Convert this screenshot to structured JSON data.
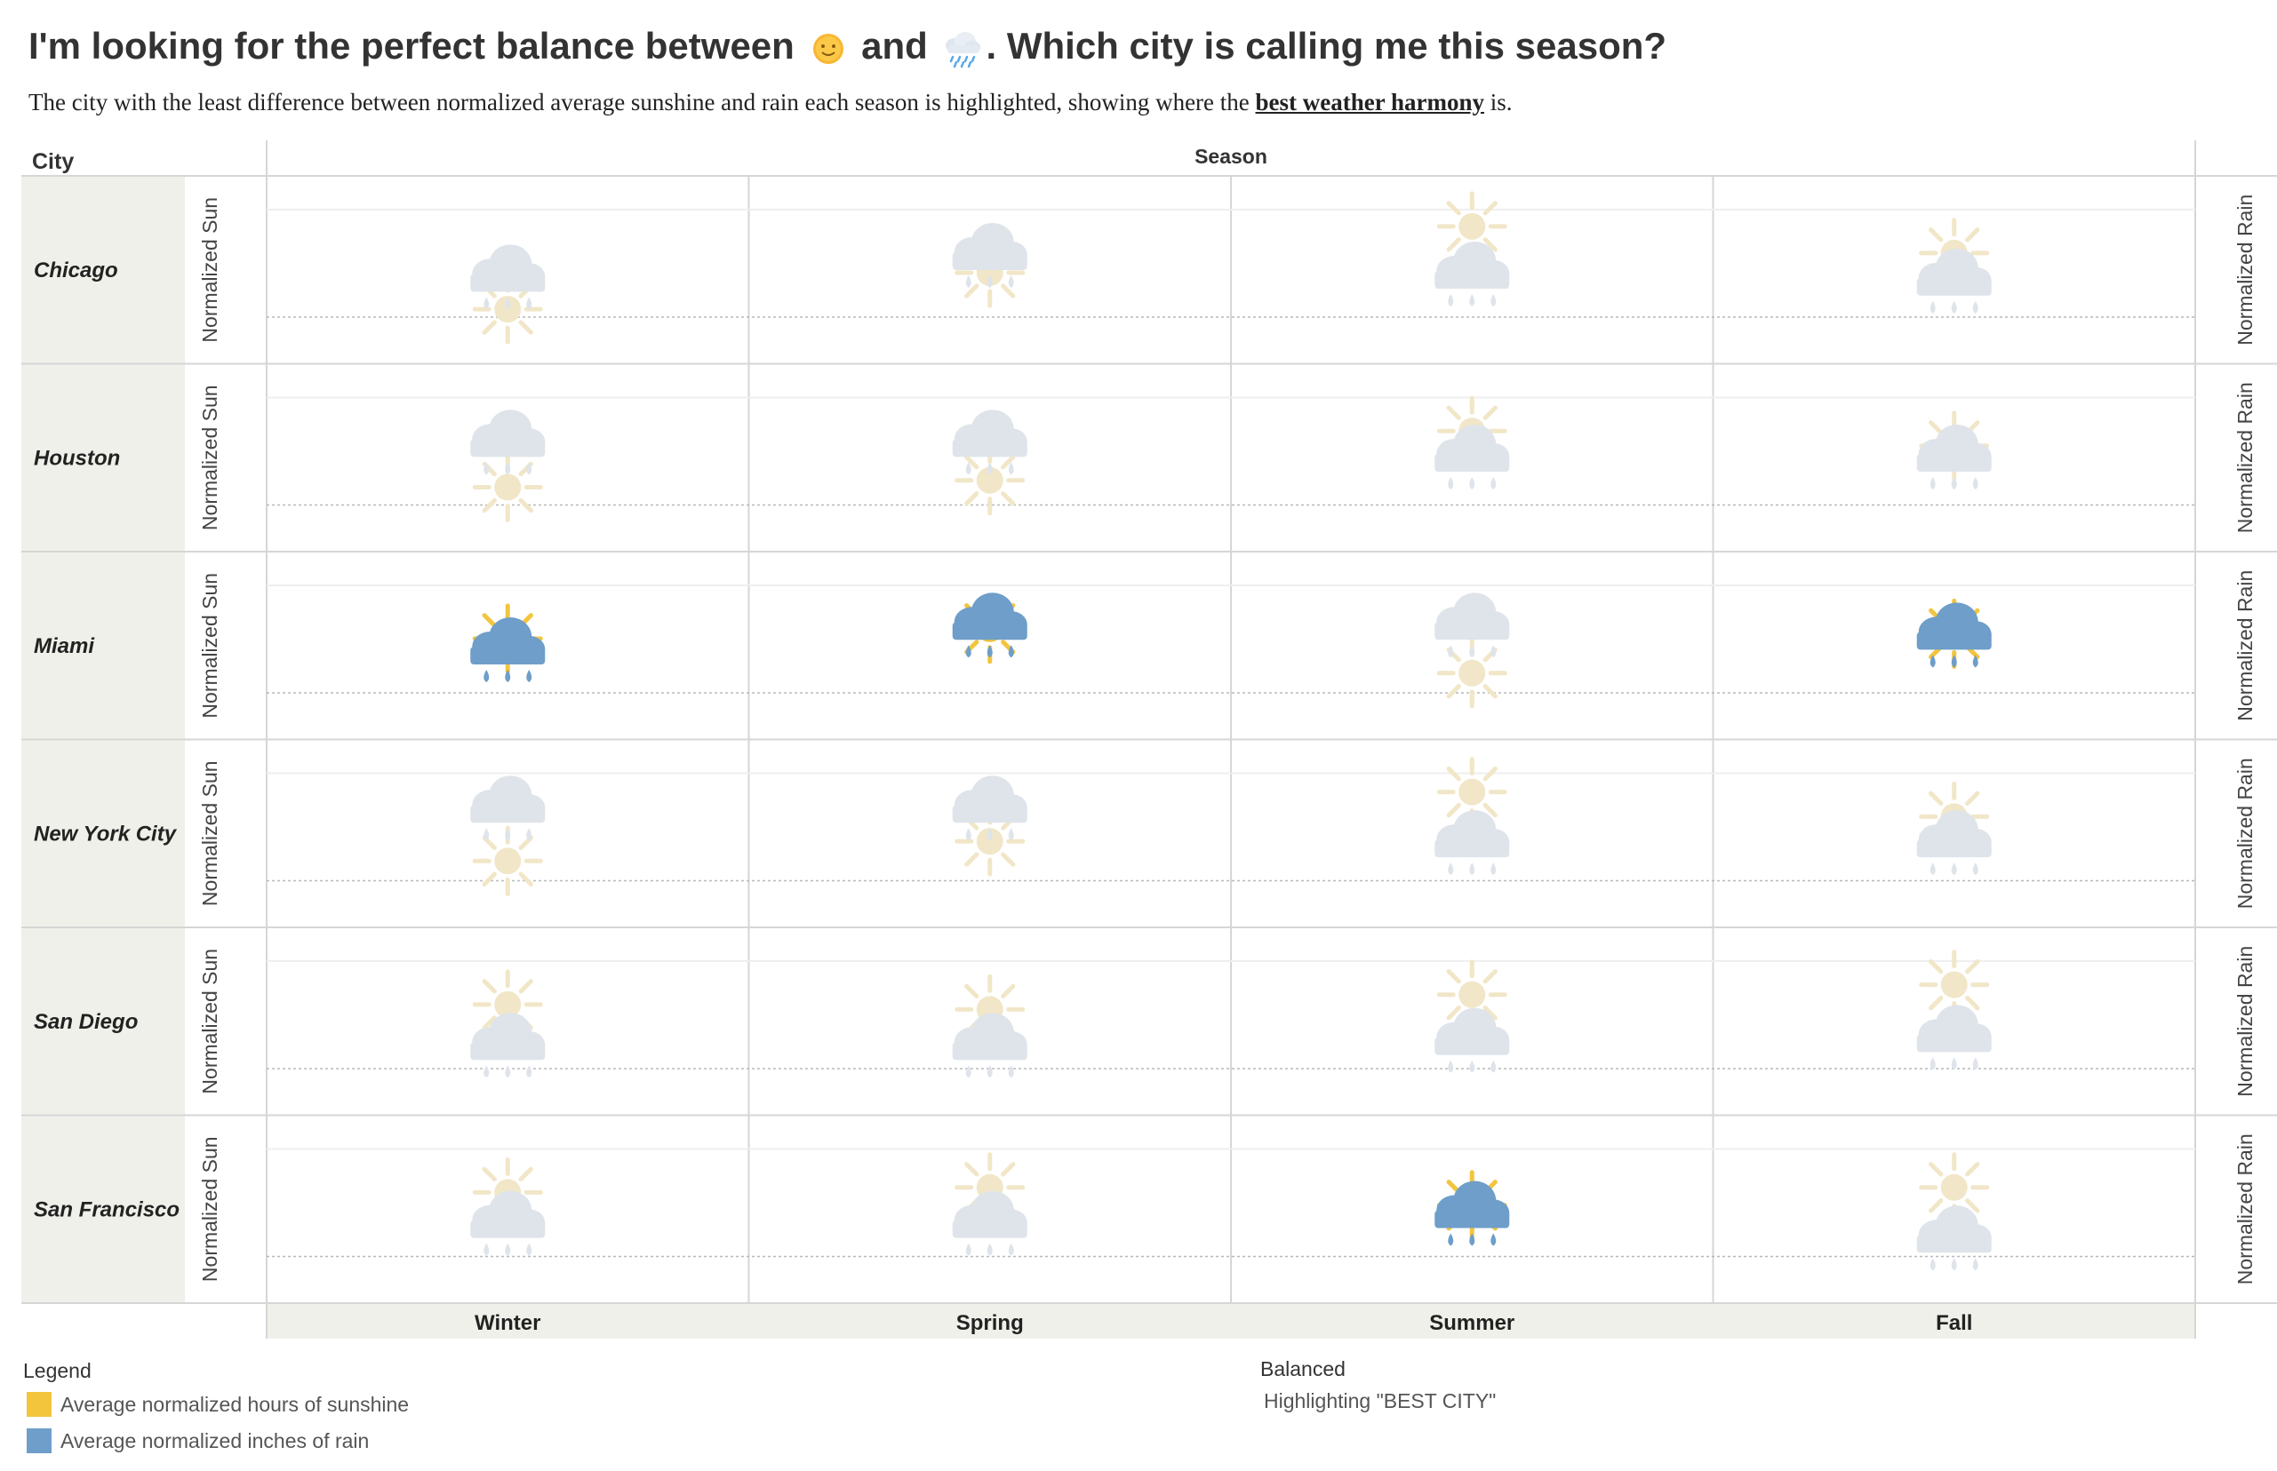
{
  "header": {
    "title_part1": "I'm looking for the perfect balance between",
    "title_part2": "and",
    "title_part3": ". Which city is calling me this season?",
    "subtitle_part1": "The city with the least difference between normalized average sunshine and rain each season is highlighted, showing where the",
    "subtitle_bold": "best weather harmony",
    "subtitle_part2": "is."
  },
  "colors": {
    "sun": "#f2c53d",
    "rain": "#6e9ec9",
    "sun_faded": "#f1e6c7",
    "rain_faded": "#dfe4ea",
    "panel_bg": "#f0f0ea"
  },
  "chart_data": {
    "type": "table",
    "row_header": "City",
    "column_header": "Season",
    "left_axis_label": "Normalized Sun",
    "right_axis_label": "Normalized Rain",
    "cities": [
      "Chicago",
      "Houston",
      "Miami",
      "New York City",
      "San Diego",
      "San Francisco"
    ],
    "seasons": [
      "Winter",
      "Spring",
      "Summer",
      "Fall"
    ],
    "normalized_sun": [
      [
        0.08,
        0.45,
        0.92,
        0.65
      ],
      [
        0.18,
        0.25,
        0.75,
        0.6
      ],
      [
        0.55,
        0.65,
        0.2,
        0.6
      ],
      [
        0.2,
        0.4,
        0.9,
        0.65
      ],
      [
        0.65,
        0.6,
        0.75,
        0.85
      ],
      [
        0.65,
        0.7,
        0.52,
        0.7
      ]
    ],
    "normalized_rain": [
      [
        0.42,
        0.64,
        0.45,
        0.38
      ],
      [
        0.65,
        0.65,
        0.5,
        0.5
      ],
      [
        0.45,
        0.7,
        0.7,
        0.6
      ],
      [
        0.75,
        0.75,
        0.4,
        0.4
      ],
      [
        0.25,
        0.25,
        0.3,
        0.33
      ],
      [
        0.35,
        0.35,
        0.45,
        0.2
      ]
    ],
    "highlighted": [
      [
        false,
        false,
        false,
        false
      ],
      [
        false,
        false,
        false,
        false
      ],
      [
        true,
        true,
        false,
        true
      ],
      [
        false,
        false,
        false,
        false
      ],
      [
        false,
        false,
        false,
        false
      ],
      [
        false,
        false,
        true,
        false
      ]
    ]
  },
  "legend": {
    "title": "Legend",
    "sun_label": "Average normalized hours of sunshine",
    "rain_label": "Average normalized inches of rain"
  },
  "balanced": {
    "title": "Balanced",
    "text": "Highlighting \"BEST CITY\""
  }
}
